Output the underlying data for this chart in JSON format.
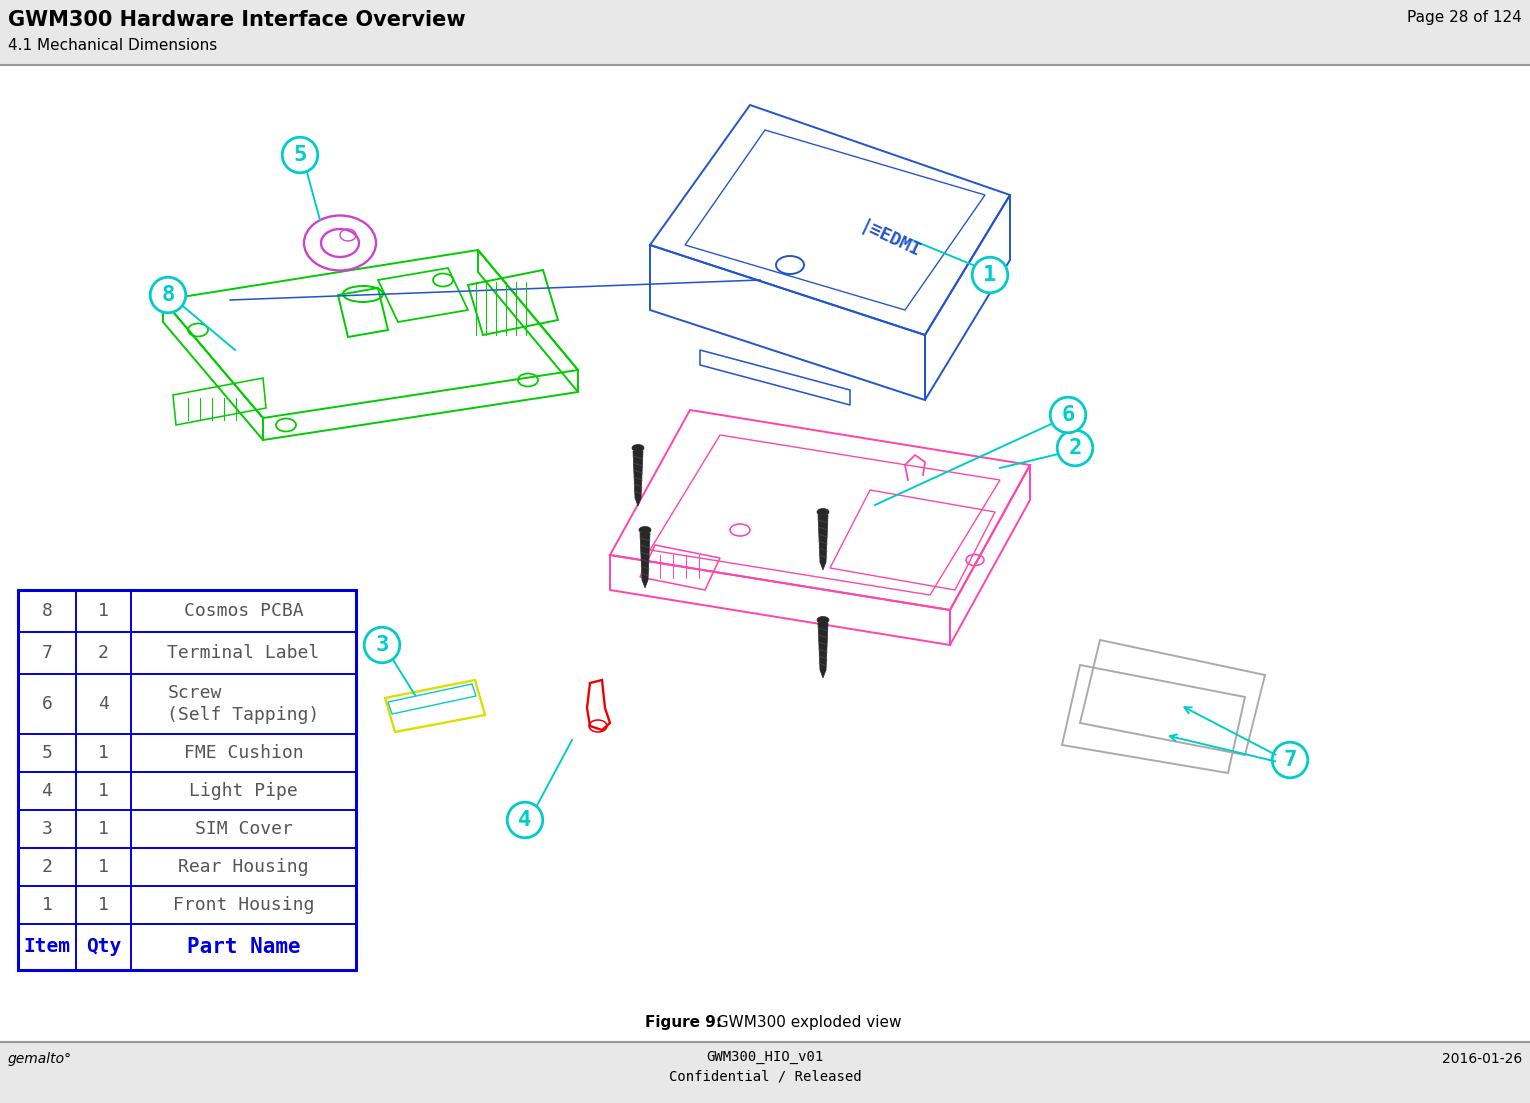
{
  "page_title": "GWM300 Hardware Interface Overview",
  "page_subtitle": "4.1 Mechanical Dimensions",
  "page_number": "Page 28 of 124",
  "footer_left": "gemalto°",
  "footer_center_line1": "GWM300_HIO_v01",
  "footer_center_line2": "Confidential / Released",
  "footer_right": "2016-01-26",
  "figure_caption_bold": "Figure 9:",
  "figure_caption_rest": "  GWM300 exploded view",
  "table_headers": [
    "Item",
    "Qty",
    "Part Name"
  ],
  "table_rows": [
    [
      "8",
      "1",
      "Cosmos PCBA"
    ],
    [
      "7",
      "2",
      "Terminal Label"
    ],
    [
      "6",
      "4",
      "Screw\n(Self Tapping)"
    ],
    [
      "5",
      "1",
      "FME Cushion"
    ],
    [
      "4",
      "1",
      "Light Pipe"
    ],
    [
      "3",
      "1",
      "SIM Cover"
    ],
    [
      "2",
      "1",
      "Rear Housing"
    ],
    [
      "1",
      "1",
      "Front Housing"
    ]
  ],
  "header_bg": "#e8e8e8",
  "table_border_color": "#0000dd",
  "table_text_color": "#555555",
  "table_header_text_color": "#0000dd",
  "cyan_color": "#00cccc",
  "green_color": "#00cc00",
  "magenta_color": "#ff44aa",
  "blue_color": "#2255cc",
  "red_color": "#ee0000",
  "yellow_color": "#dddd00",
  "gray_color": "#aaaaaa",
  "pink_color": "#dd44aa",
  "screw_color": "#333333"
}
